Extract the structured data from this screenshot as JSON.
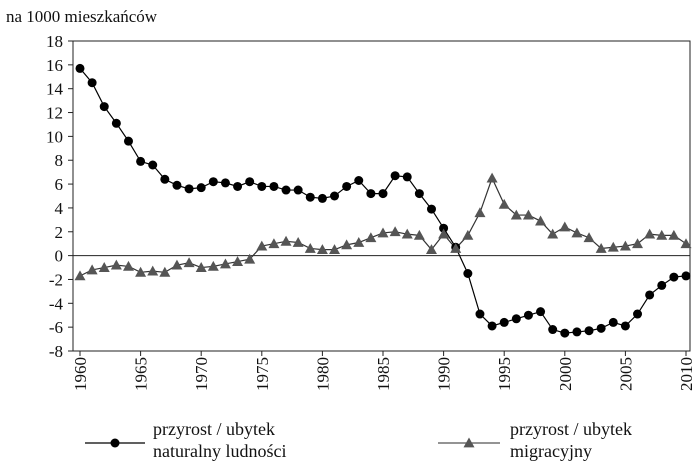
{
  "chart_data": {
    "type": "line",
    "y_label": "na 1000 mieszkańców",
    "x": [
      1960,
      1961,
      1962,
      1963,
      1964,
      1965,
      1966,
      1967,
      1968,
      1969,
      1970,
      1971,
      1972,
      1973,
      1974,
      1975,
      1976,
      1977,
      1978,
      1979,
      1980,
      1981,
      1982,
      1983,
      1984,
      1985,
      1986,
      1987,
      1988,
      1989,
      1990,
      1991,
      1992,
      1993,
      1994,
      1995,
      1996,
      1997,
      1998,
      1999,
      2000,
      2001,
      2002,
      2003,
      2004,
      2005,
      2006,
      2007,
      2008,
      2009,
      2010
    ],
    "series": [
      {
        "name": "przyrost / ubytek naturalny ludności",
        "color": "#000000",
        "marker": "circle",
        "values": [
          15.7,
          14.5,
          12.5,
          11.1,
          9.6,
          7.9,
          7.6,
          6.4,
          5.9,
          5.6,
          5.7,
          6.2,
          6.1,
          5.8,
          6.2,
          5.8,
          5.8,
          5.5,
          5.5,
          4.9,
          4.8,
          5.0,
          5.8,
          6.3,
          5.2,
          5.2,
          6.7,
          6.6,
          5.2,
          3.9,
          2.3,
          0.7,
          -1.5,
          -4.9,
          -5.9,
          -5.6,
          -5.3,
          -5.0,
          -4.7,
          -6.2,
          -6.5,
          -6.4,
          -6.3,
          -6.1,
          -5.6,
          -5.9,
          -4.9,
          -3.3,
          -2.5,
          -1.8,
          -1.7
        ]
      },
      {
        "name": "przyrost / ubytek migracyjny",
        "color": "#555555",
        "marker": "triangle",
        "values": [
          -1.7,
          -1.2,
          -1.0,
          -0.8,
          -0.9,
          -1.4,
          -1.3,
          -1.4,
          -0.8,
          -0.6,
          -1.0,
          -0.9,
          -0.7,
          -0.5,
          -0.3,
          0.8,
          1.0,
          1.2,
          1.1,
          0.6,
          0.5,
          0.5,
          0.9,
          1.1,
          1.5,
          1.9,
          2.0,
          1.8,
          1.7,
          0.5,
          1.8,
          0.6,
          1.7,
          3.6,
          6.5,
          4.3,
          3.4,
          3.4,
          2.9,
          1.8,
          2.4,
          1.9,
          1.5,
          0.6,
          0.7,
          0.8,
          1.0,
          1.8,
          1.7,
          1.7,
          1.0
        ]
      }
    ],
    "xlim": [
      1960,
      2010
    ],
    "xticks": [
      1960,
      1965,
      1970,
      1975,
      1980,
      1985,
      1990,
      1995,
      2000,
      2005,
      2010
    ],
    "ylim": [
      -8,
      18
    ],
    "yticks": [
      -8,
      -6,
      -4,
      -2,
      0,
      2,
      4,
      6,
      8,
      10,
      12,
      14,
      16,
      18
    ],
    "grid": false
  }
}
